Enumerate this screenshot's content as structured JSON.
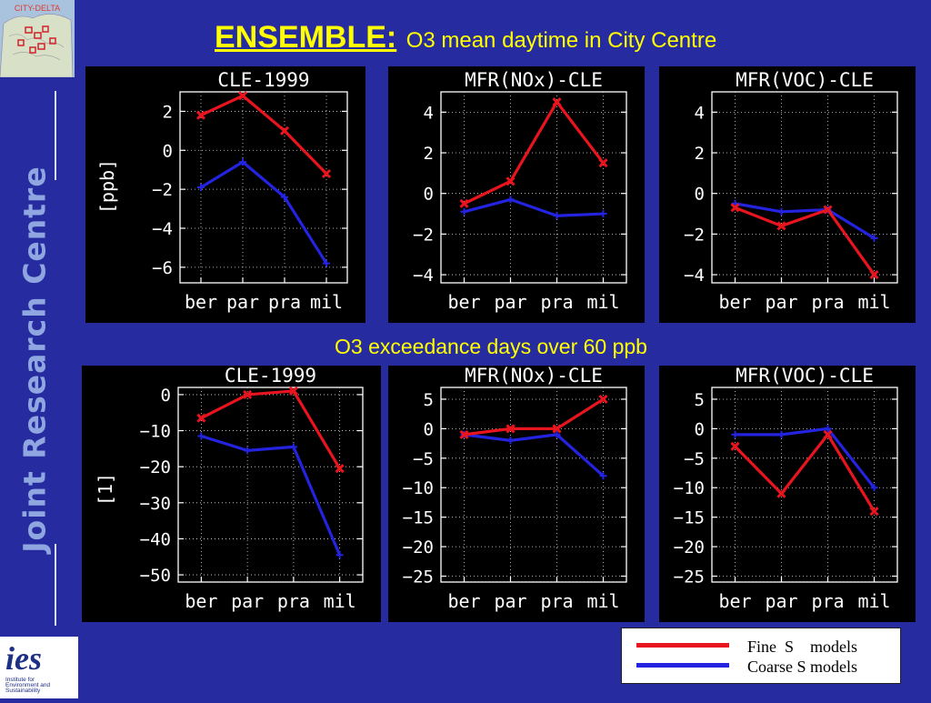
{
  "header": {
    "title": "ENSEMBLE:",
    "subtitle": "O3 mean daytime  in City Centre"
  },
  "logos": {
    "top": "CITY-DELTA",
    "side": "Joint Research Centre",
    "bottom": "ies",
    "bottom_caption": "Institute for Environment and Sustainability"
  },
  "section2_title": "O3 exceedance days over 60 ppb",
  "legend": {
    "fine": "Fine  S    models",
    "coarse": "Coarse S models",
    "fine_color": "#e8141e",
    "coarse_color": "#2323e0"
  },
  "chart_data": [
    {
      "type": "line",
      "title": "CLE-1999",
      "ylabel": "[ppb]",
      "categories": [
        "ber",
        "par",
        "pra",
        "mil"
      ],
      "ylim": [
        -6.8,
        3.0
      ],
      "yticks": [
        2,
        0,
        -2,
        -4,
        -6
      ],
      "ytick_labels": [
        "2",
        "0",
        "−2",
        "−4",
        "−6"
      ],
      "series": [
        {
          "color": "#e8141e",
          "values": [
            1.8,
            2.8,
            1.0,
            -1.2
          ]
        },
        {
          "color": "#2323e0",
          "values": [
            -1.9,
            -0.6,
            -2.4,
            -5.8
          ]
        }
      ]
    },
    {
      "type": "line",
      "title": "MFR(NOx)-CLE",
      "ylabel": "",
      "categories": [
        "ber",
        "par",
        "pra",
        "mil"
      ],
      "ylim": [
        -4.4,
        5.0
      ],
      "yticks": [
        4,
        2,
        0,
        -2,
        -4
      ],
      "ytick_labels": [
        "4",
        "2",
        "0",
        "−2",
        "−4"
      ],
      "series": [
        {
          "color": "#e8141e",
          "values": [
            -0.5,
            0.6,
            4.5,
            1.5
          ]
        },
        {
          "color": "#2323e0",
          "values": [
            -0.9,
            -0.3,
            -1.1,
            -1.0
          ]
        }
      ]
    },
    {
      "type": "line",
      "title": "MFR(VOC)-CLE",
      "ylabel": "",
      "categories": [
        "ber",
        "par",
        "pra",
        "mil"
      ],
      "ylim": [
        -4.4,
        5.0
      ],
      "yticks": [
        4,
        2,
        0,
        -2,
        -4
      ],
      "ytick_labels": [
        "4",
        "2",
        "0",
        "−2",
        "−4"
      ],
      "series": [
        {
          "color": "#e8141e",
          "values": [
            -0.7,
            -1.6,
            -0.8,
            -4.0
          ]
        },
        {
          "color": "#2323e0",
          "values": [
            -0.5,
            -0.9,
            -0.8,
            -2.2
          ]
        }
      ]
    },
    {
      "type": "line",
      "title": "CLE-1999",
      "ylabel": "[1]",
      "categories": [
        "ber",
        "par",
        "pra",
        "mil"
      ],
      "ylim": [
        -52,
        2
      ],
      "yticks": [
        0,
        -10,
        -20,
        -30,
        -40,
        -50
      ],
      "ytick_labels": [
        "0",
        "−10",
        "−20",
        "−30",
        "−40",
        "−50"
      ],
      "series": [
        {
          "color": "#e8141e",
          "values": [
            -6.5,
            0,
            1,
            -20.5
          ]
        },
        {
          "color": "#2323e0",
          "values": [
            -11.5,
            -15.5,
            -14.5,
            -44.5
          ]
        }
      ]
    },
    {
      "type": "line",
      "title": "MFR(NOx)-CLE",
      "ylabel": "",
      "categories": [
        "ber",
        "par",
        "pra",
        "mil"
      ],
      "ylim": [
        -26,
        7
      ],
      "yticks": [
        5,
        0,
        -5,
        -10,
        -15,
        -20,
        -25
      ],
      "ytick_labels": [
        "5",
        "0",
        "−5",
        "−10",
        "−15",
        "−20",
        "−25"
      ],
      "series": [
        {
          "color": "#e8141e",
          "values": [
            -1,
            0,
            0,
            5
          ]
        },
        {
          "color": "#2323e0",
          "values": [
            -1,
            -2,
            -1,
            -8
          ]
        }
      ]
    },
    {
      "type": "line",
      "title": "MFR(VOC)-CLE",
      "ylabel": "",
      "categories": [
        "ber",
        "par",
        "pra",
        "mil"
      ],
      "ylim": [
        -26,
        7
      ],
      "yticks": [
        5,
        0,
        -5,
        -10,
        -15,
        -20,
        -25
      ],
      "ytick_labels": [
        "5",
        "0",
        "−5",
        "−10",
        "−15",
        "−20",
        "−25"
      ],
      "series": [
        {
          "color": "#e8141e",
          "values": [
            -3,
            -11,
            -1,
            -14
          ]
        },
        {
          "color": "#2323e0",
          "values": [
            -1,
            -1,
            0,
            -10
          ]
        }
      ]
    }
  ]
}
